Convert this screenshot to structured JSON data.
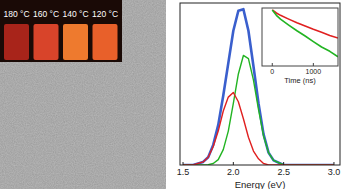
{
  "image": {
    "labels": [
      "180 °C",
      "160 °C",
      "140 °C",
      "120 °C"
    ]
  },
  "chart_data": [
    {
      "type": "line",
      "x_label": "Energy (eV)",
      "x": [
        1.5,
        1.6,
        1.7,
        1.75,
        1.8,
        1.85,
        1.9,
        1.95,
        2.0,
        2.05,
        2.1,
        2.15,
        2.2,
        2.25,
        2.3,
        2.35,
        2.4,
        2.5,
        2.6,
        2.8,
        3.0
      ],
      "series": [
        {
          "color": "#3a5fcd",
          "values": [
            0,
            0,
            0.02,
            0.05,
            0.13,
            0.26,
            0.45,
            0.66,
            0.87,
            1.0,
            1.01,
            0.87,
            0.64,
            0.4,
            0.2,
            0.08,
            0.03,
            0,
            0,
            0,
            0
          ]
        },
        {
          "color": "#22b422",
          "values": [
            0,
            0,
            0,
            0.002,
            0.01,
            0.035,
            0.1,
            0.22,
            0.4,
            0.59,
            0.71,
            0.69,
            0.55,
            0.36,
            0.19,
            0.08,
            0.03,
            0,
            0,
            0,
            0
          ]
        },
        {
          "color": "#e02020",
          "values": [
            0,
            0,
            0.02,
            0.05,
            0.12,
            0.22,
            0.35,
            0.44,
            0.47,
            0.41,
            0.3,
            0.18,
            0.09,
            0.04,
            0.01,
            0,
            0,
            0,
            0,
            0,
            0
          ]
        }
      ],
      "xlim": [
        1.47,
        3.06
      ],
      "xticks": [
        1.5,
        {
          "value": 2,
          "label": "2.0"
        },
        2.5,
        {
          "value": 3,
          "label": "3.0"
        }
      ],
      "ylim": [
        0,
        1.05
      ],
      "tick_labels": "x"
    },
    {
      "type": "line",
      "x_label": "Time (ns)",
      "x": [
        0,
        100,
        200,
        400,
        600,
        800,
        1000,
        1200,
        1400,
        1600
      ],
      "series": [
        {
          "color": "#e02020",
          "values": [
            1,
            0.75,
            0.6,
            0.42,
            0.3,
            0.22,
            0.16,
            0.12,
            0.09,
            0.07
          ]
        },
        {
          "color": "#22b422",
          "values": [
            1,
            0.6,
            0.42,
            0.24,
            0.14,
            0.085,
            0.05,
            0.03,
            0.02,
            0.012
          ]
        }
      ],
      "xlim": [
        -250,
        1600
      ],
      "xticks": [
        0,
        1000
      ],
      "ylim": [
        0.005,
        1.2
      ],
      "log": "y",
      "tick_labels": "x"
    }
  ]
}
